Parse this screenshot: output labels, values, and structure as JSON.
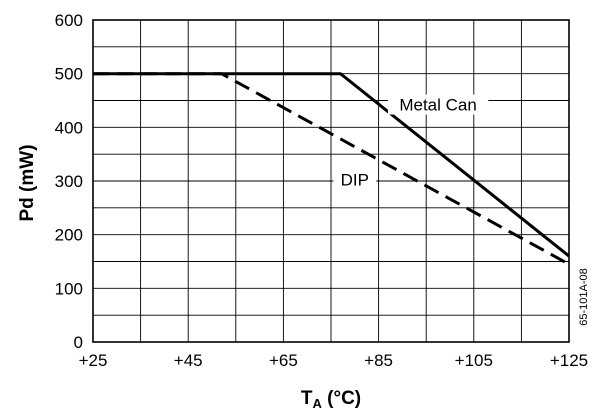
{
  "chart_data": {
    "type": "line",
    "title": "",
    "xlabel": "T",
    "xlabel_sub": "A",
    "xlabel_unit": " (°C)",
    "ylabel": "Pd (mW)",
    "xlim": [
      25,
      125
    ],
    "ylim": [
      0,
      600
    ],
    "x_ticks": [
      25,
      35,
      45,
      55,
      65,
      75,
      85,
      95,
      105,
      115,
      125
    ],
    "x_tick_labels": [
      "+25",
      "+45",
      "+65",
      "+85",
      "+105",
      "+125"
    ],
    "x_tick_label_values": [
      25,
      45,
      65,
      85,
      105,
      125
    ],
    "y_ticks": [
      0,
      50,
      100,
      150,
      200,
      250,
      300,
      350,
      400,
      450,
      500,
      550,
      600
    ],
    "y_tick_labels": [
      "0",
      "100",
      "200",
      "300",
      "400",
      "500",
      "600"
    ],
    "y_tick_label_values": [
      0,
      100,
      200,
      300,
      400,
      500,
      600
    ],
    "grid": true,
    "legend": "none",
    "series": [
      {
        "name": "Metal Can",
        "style": "solid",
        "x": [
          25,
          77,
          125
        ],
        "y": [
          500,
          500,
          160
        ]
      },
      {
        "name": "DIP",
        "style": "dashed",
        "x": [
          25,
          52,
          125
        ],
        "y": [
          500,
          500,
          145
        ]
      }
    ],
    "annotations": [
      {
        "text": "Metal Can",
        "x": 97.5,
        "y": 435
      },
      {
        "text": "DIP",
        "x": 80,
        "y": 295
      }
    ],
    "reference_code": "65-101A-08"
  }
}
